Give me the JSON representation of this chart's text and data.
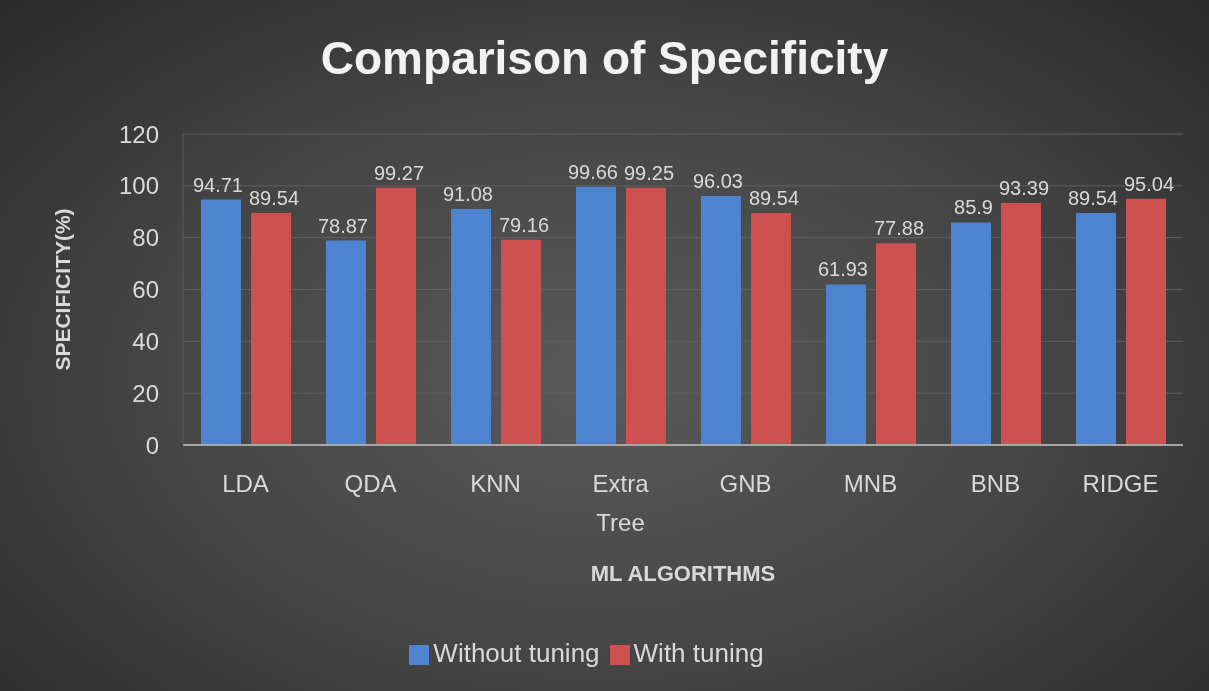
{
  "chart_data": {
    "type": "bar",
    "title": "Comparison of Specificity",
    "xlabel": "ML ALGORITHMS",
    "ylabel": "SPECIFICITY(%)",
    "categories": [
      "LDA",
      "QDA",
      "KNN",
      "Extra Tree",
      "GNB",
      "MNB",
      "BNB",
      "RIDGE"
    ],
    "series": [
      {
        "name": "Without tuning",
        "color": "#4e84cf",
        "values": [
          94.71,
          78.87,
          91.08,
          99.66,
          96.03,
          61.93,
          85.9,
          89.54
        ]
      },
      {
        "name": "With tuning",
        "color": "#cd524f",
        "values": [
          89.54,
          99.27,
          79.16,
          99.25,
          89.54,
          77.88,
          93.39,
          95.04
        ]
      }
    ],
    "ylim": [
      0,
      120
    ],
    "yticks": [
      0,
      20,
      40,
      60,
      80,
      100,
      120
    ],
    "grid": "y",
    "legend": "bottom",
    "data_labels": true
  }
}
